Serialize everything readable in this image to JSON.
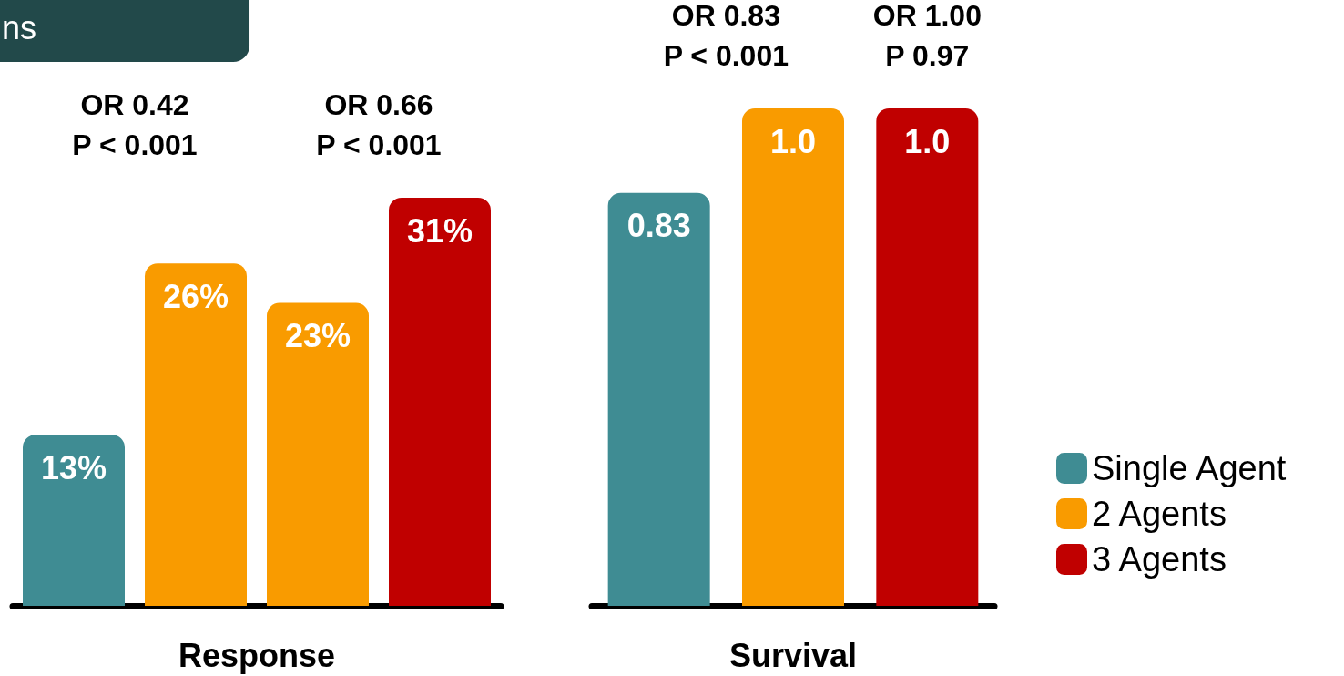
{
  "chart_data": [
    {
      "type": "bar",
      "title": "ns",
      "xlabel": "Response",
      "categories": [
        null,
        null,
        null,
        null
      ],
      "stacked": true,
      "legend": false,
      "series": [
        {
          "color": "#3f8c93",
          "values": [
            13,
            null,
            null,
            null
          ],
          "value_labels": [
            "13%",
            null,
            null,
            null
          ]
        },
        {
          "color": "#f99b00",
          "values": [
            null,
            26,
            23,
            null
          ],
          "value_labels": [
            null,
            "26%",
            "23%",
            null
          ]
        },
        {
          "color": "#c00000",
          "values": [
            null,
            null,
            null,
            31
          ],
          "value_labels": [
            null,
            null,
            null,
            "31%"
          ]
        }
      ],
      "annotations": [
        "OR 0.42\nP < 0.001",
        "OR 0.66\nP < 0.001"
      ]
    },
    {
      "type": "bar",
      "xlabel": "Survival",
      "categories": [
        null,
        null,
        null
      ],
      "stacked": true,
      "legend": "right",
      "series": [
        {
          "name": "Single Agent",
          "color": "#3f8c93",
          "values": [
            0.83,
            null,
            null
          ],
          "value_labels": [
            "0.83",
            null,
            null
          ]
        },
        {
          "name": "2 Agents",
          "color": "#f99b00",
          "values": [
            null,
            1.0,
            null
          ],
          "value_labels": [
            null,
            "1.0",
            null
          ]
        },
        {
          "name": "3 Agents",
          "color": "#c00000",
          "values": [
            null,
            null,
            1.0
          ],
          "value_labels": [
            null,
            null,
            "1.0"
          ]
        }
      ],
      "annotations": [
        "OR 0.83\nP < 0.001",
        "OR 1.00\nP 0.97"
      ]
    }
  ]
}
